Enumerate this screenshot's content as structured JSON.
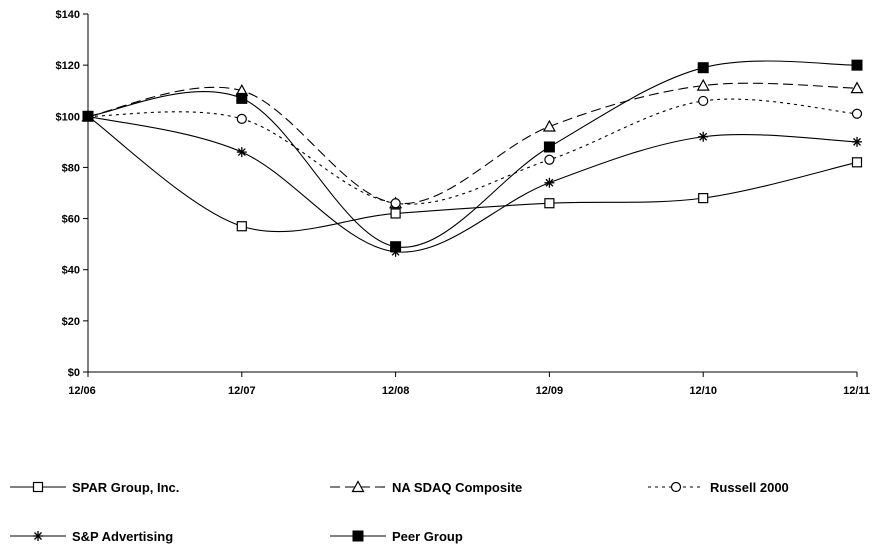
{
  "chart_data": {
    "type": "line",
    "title": "",
    "xlabel": "",
    "ylabel": "",
    "x": [
      "12/06",
      "12/07",
      "12/08",
      "12/09",
      "12/10",
      "12/11"
    ],
    "ylim": [
      0,
      140
    ],
    "yticks": [
      "$0",
      "$20",
      "$40",
      "$60",
      "$80",
      "$100",
      "$120",
      "$140"
    ],
    "grid": false,
    "legend_position": "bottom",
    "series": [
      {
        "name": "SPAR Group, Inc.",
        "values": [
          100,
          57,
          62,
          66,
          68,
          82
        ],
        "marker": "square-open",
        "dash": "solid"
      },
      {
        "name": "NA SDAQ Composite",
        "values": [
          100,
          110,
          66,
          96,
          112,
          111
        ],
        "marker": "triangle-open",
        "dash": "dashed"
      },
      {
        "name": "Russell 2000",
        "values": [
          100,
          99,
          66,
          83,
          106,
          101
        ],
        "marker": "circle-open",
        "dash": "dotted"
      },
      {
        "name": "S&P Advertising",
        "values": [
          100,
          86,
          47,
          74,
          92,
          90
        ],
        "marker": "asterisk",
        "dash": "solid"
      },
      {
        "name": "Peer Group",
        "values": [
          100,
          107,
          49,
          88,
          119,
          120
        ],
        "marker": "square-filled",
        "dash": "solid"
      }
    ]
  }
}
